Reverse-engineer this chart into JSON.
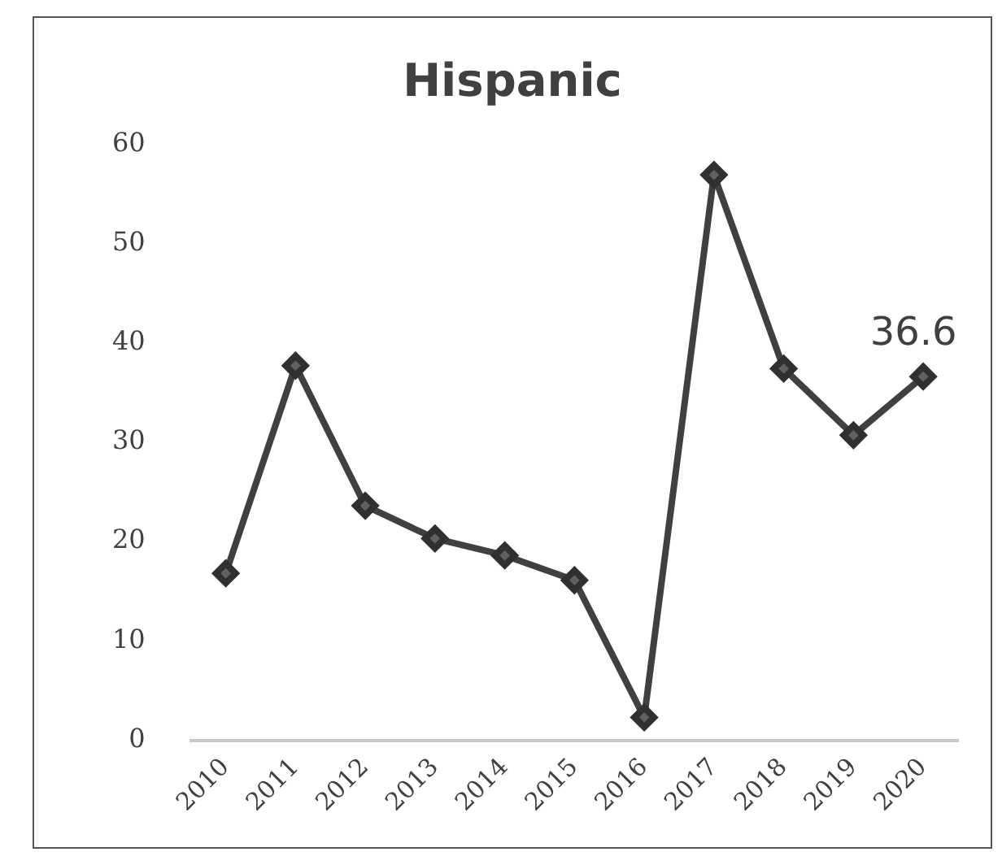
{
  "chart_data": {
    "type": "line",
    "title": "Hispanic",
    "categories": [
      "2010",
      "2011",
      "2012",
      "2013",
      "2014",
      "2015",
      "2016",
      "2017",
      "2018",
      "2019",
      "2020"
    ],
    "series": [
      {
        "color": "#404040",
        "values": [
          16.8,
          37.7,
          23.6,
          20.3,
          18.6,
          16.1,
          2.3,
          56.9,
          37.4,
          30.7,
          36.6
        ],
        "value_labels": [
          null,
          null,
          null,
          null,
          null,
          null,
          null,
          null,
          null,
          null,
          "36.6"
        ]
      }
    ],
    "ylim": [
      0,
      60
    ],
    "yticks": [
      0,
      10,
      20,
      30,
      40,
      50,
      60
    ],
    "grid": false,
    "legend": false,
    "marker": "diamond",
    "line_style": "solid"
  }
}
